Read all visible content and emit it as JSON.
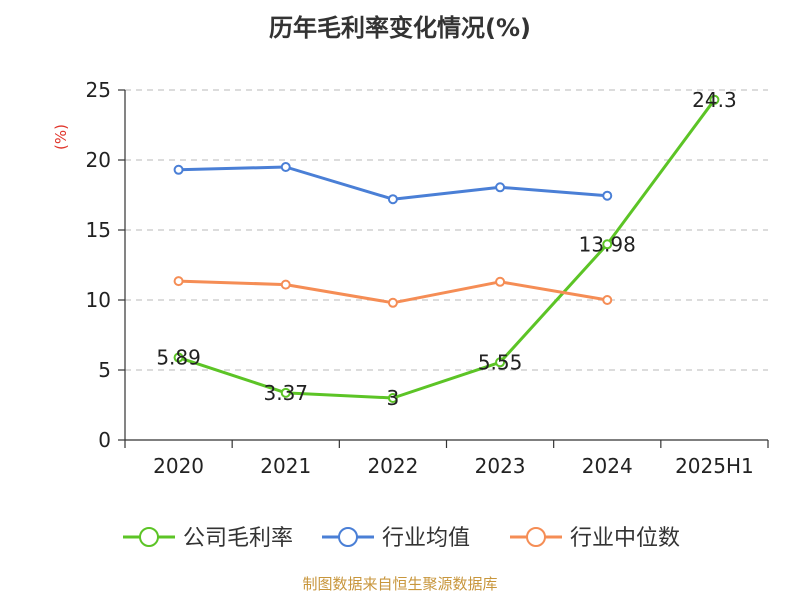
{
  "chart_data": {
    "type": "line",
    "title": "历年毛利率变化情况(%)",
    "ylabel": "(%)",
    "xlabel": "",
    "categories": [
      "2020",
      "2021",
      "2022",
      "2023",
      "2024",
      "2025H1"
    ],
    "ylim": [
      0,
      25
    ],
    "yticks": [
      0,
      5,
      10,
      15,
      20,
      25
    ],
    "grid": true,
    "legend_position": "bottom",
    "series": [
      {
        "name": "公司毛利率",
        "color": "#5cc426",
        "values": [
          5.89,
          3.37,
          3,
          5.55,
          13.98,
          24.3
        ],
        "labels": [
          "5.89",
          "3.37",
          "3",
          "5.55",
          "13.98",
          "24.3"
        ]
      },
      {
        "name": "行业均值",
        "color": "#4a7fd6",
        "values": [
          19.3,
          19.5,
          17.2,
          18.05,
          17.45,
          null
        ]
      },
      {
        "name": "行业中位数",
        "color": "#f58d55",
        "values": [
          11.35,
          11.1,
          9.8,
          11.3,
          10.0,
          null
        ]
      }
    ]
  },
  "source": "制图数据来自恒生聚源数据库"
}
